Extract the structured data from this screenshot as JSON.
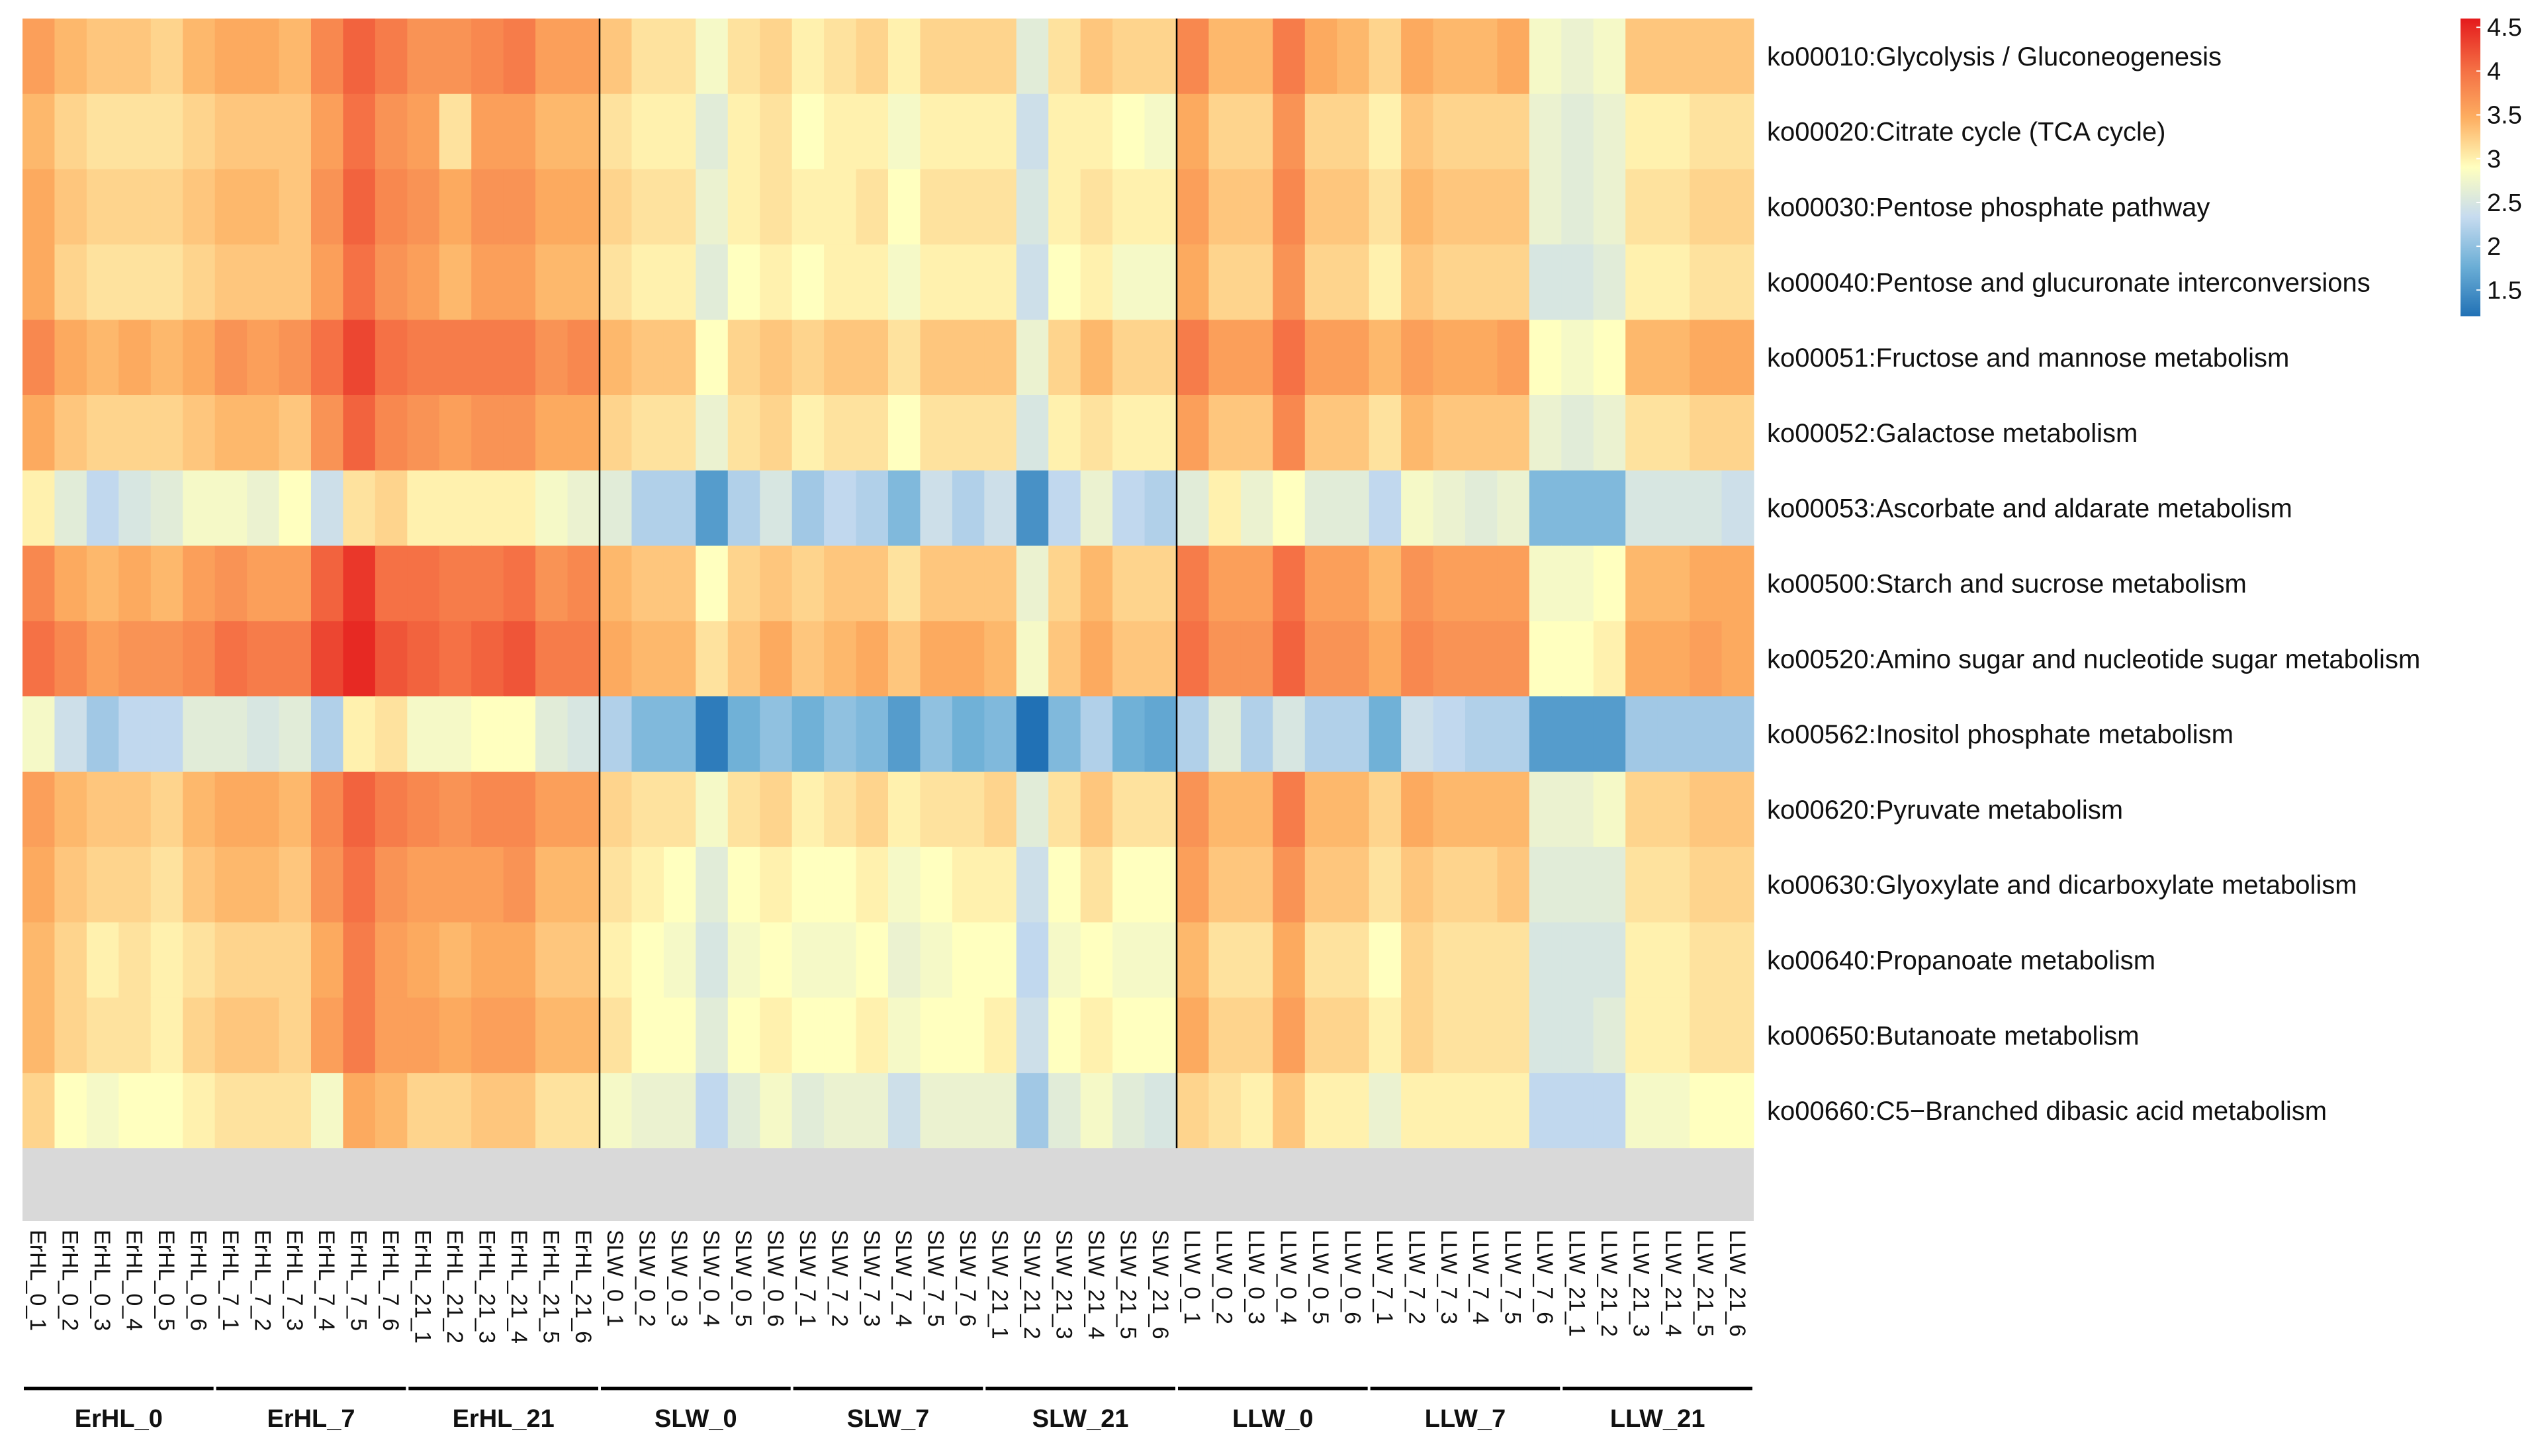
{
  "chart_data": {
    "type": "heatmap",
    "title": "",
    "rows": [
      "ko00010:Glycolysis / Gluconeogenesis",
      "ko00020:Citrate cycle (TCA cycle)",
      "ko00030:Pentose phosphate pathway",
      "ko00040:Pentose and glucuronate interconversions",
      "ko00051:Fructose and mannose metabolism",
      "ko00052:Galactose metabolism",
      "ko00053:Ascorbate and aldarate metabolism",
      "ko00500:Starch and sucrose metabolism",
      "ko00520:Amino sugar and nucleotide sugar metabolism",
      "ko00562:Inositol phosphate metabolism",
      "ko00620:Pyruvate metabolism",
      "ko00630:Glyoxylate and dicarboxylate metabolism",
      "ko00640:Propanoate metabolism",
      "ko00650:Butanoate metabolism",
      "ko00660:C5−Branched dibasic acid metabolism"
    ],
    "columns": [
      "ErHL_0_1",
      "ErHL_0_2",
      "ErHL_0_3",
      "ErHL_0_4",
      "ErHL_0_5",
      "ErHL_0_6",
      "ErHL_7_1",
      "ErHL_7_2",
      "ErHL_7_3",
      "ErHL_7_4",
      "ErHL_7_5",
      "ErHL_7_6",
      "ErHL_21_1",
      "ErHL_21_2",
      "ErHL_21_3",
      "ErHL_21_4",
      "ErHL_21_5",
      "ErHL_21_6",
      "SLW_0_1",
      "SLW_0_2",
      "SLW_0_3",
      "SLW_0_4",
      "SLW_0_5",
      "SLW_0_6",
      "SLW_7_1",
      "SLW_7_2",
      "SLW_7_3",
      "SLW_7_4",
      "SLW_7_5",
      "SLW_7_6",
      "SLW_21_1",
      "SLW_21_2",
      "SLW_21_3",
      "SLW_21_4",
      "SLW_21_5",
      "SLW_21_6",
      "LLW_0_1",
      "LLW_0_2",
      "LLW_0_3",
      "LLW_0_4",
      "LLW_0_5",
      "LLW_0_6",
      "LLW_7_1",
      "LLW_7_2",
      "LLW_7_3",
      "LLW_7_4",
      "LLW_7_5",
      "LLW_7_6",
      "LLW_21_1",
      "LLW_21_2",
      "LLW_21_3",
      "LLW_21_4",
      "LLW_21_5",
      "LLW_21_6"
    ],
    "groups": [
      {
        "name": "ErHL_0",
        "start": 0,
        "end": 5
      },
      {
        "name": "ErHL_7",
        "start": 6,
        "end": 11
      },
      {
        "name": "ErHL_21",
        "start": 12,
        "end": 17
      },
      {
        "name": "SLW_0",
        "start": 18,
        "end": 23
      },
      {
        "name": "SLW_7",
        "start": 24,
        "end": 29
      },
      {
        "name": "SLW_21",
        "start": 30,
        "end": 35
      },
      {
        "name": "LLW_0",
        "start": 36,
        "end": 41
      },
      {
        "name": "LLW_7",
        "start": 42,
        "end": 47
      },
      {
        "name": "LLW_21",
        "start": 48,
        "end": 53
      }
    ],
    "gaps_after_columns": [
      17,
      35
    ],
    "values": [
      [
        3.6,
        3.4,
        3.3,
        3.3,
        3.2,
        3.4,
        3.5,
        3.5,
        3.4,
        3.8,
        4.1,
        3.9,
        3.7,
        3.7,
        3.8,
        3.9,
        3.6,
        3.6,
        3.3,
        3.1,
        3.1,
        2.8,
        3.1,
        3.2,
        3.0,
        3.1,
        3.2,
        3.0,
        3.2,
        3.2,
        3.2,
        2.6,
        3.1,
        3.3,
        3.2,
        3.2,
        3.8,
        3.4,
        3.4,
        3.9,
        3.5,
        3.4,
        3.2,
        3.5,
        3.4,
        3.4,
        3.5,
        2.8,
        2.7,
        2.8,
        3.3,
        3.3,
        3.3,
        3.3
      ],
      [
        3.4,
        3.2,
        3.1,
        3.1,
        3.1,
        3.2,
        3.3,
        3.3,
        3.3,
        3.6,
        4.0,
        3.7,
        3.6,
        3.1,
        3.6,
        3.6,
        3.4,
        3.4,
        3.1,
        3.0,
        3.0,
        2.6,
        3.0,
        3.1,
        2.9,
        3.0,
        3.0,
        2.8,
        3.0,
        3.0,
        3.0,
        2.4,
        3.0,
        3.0,
        2.9,
        2.8,
        3.5,
        3.2,
        3.2,
        3.7,
        3.2,
        3.2,
        3.0,
        3.3,
        3.2,
        3.2,
        3.2,
        2.7,
        2.6,
        2.7,
        3.0,
        3.0,
        3.1,
        3.1
      ],
      [
        3.5,
        3.3,
        3.2,
        3.2,
        3.2,
        3.3,
        3.4,
        3.4,
        3.3,
        3.7,
        4.1,
        3.8,
        3.7,
        3.5,
        3.7,
        3.7,
        3.5,
        3.5,
        3.2,
        3.1,
        3.1,
        2.7,
        3.0,
        3.1,
        3.0,
        3.0,
        3.1,
        2.9,
        3.1,
        3.1,
        3.1,
        2.5,
        3.0,
        3.1,
        3.0,
        3.0,
        3.6,
        3.3,
        3.3,
        3.8,
        3.3,
        3.3,
        3.1,
        3.4,
        3.3,
        3.3,
        3.3,
        2.7,
        2.6,
        2.7,
        3.1,
        3.1,
        3.2,
        3.2
      ],
      [
        3.5,
        3.2,
        3.1,
        3.1,
        3.1,
        3.2,
        3.3,
        3.3,
        3.3,
        3.6,
        4.0,
        3.7,
        3.6,
        3.4,
        3.6,
        3.6,
        3.4,
        3.4,
        3.1,
        3.0,
        3.0,
        2.6,
        2.9,
        3.0,
        2.9,
        3.0,
        3.0,
        2.8,
        3.0,
        3.0,
        3.0,
        2.4,
        2.9,
        3.0,
        2.8,
        2.8,
        3.5,
        3.2,
        3.2,
        3.7,
        3.2,
        3.2,
        3.0,
        3.3,
        3.2,
        3.2,
        3.2,
        2.5,
        2.5,
        2.6,
        3.0,
        3.0,
        3.1,
        3.1
      ],
      [
        3.8,
        3.5,
        3.4,
        3.5,
        3.4,
        3.5,
        3.7,
        3.6,
        3.7,
        4.0,
        4.3,
        4.0,
        3.9,
        3.9,
        3.9,
        3.9,
        3.7,
        3.8,
        3.4,
        3.3,
        3.3,
        2.9,
        3.2,
        3.3,
        3.2,
        3.3,
        3.3,
        3.1,
        3.3,
        3.3,
        3.3,
        2.7,
        3.2,
        3.4,
        3.2,
        3.2,
        3.9,
        3.6,
        3.6,
        4.0,
        3.6,
        3.6,
        3.4,
        3.6,
        3.5,
        3.5,
        3.6,
        2.9,
        2.8,
        2.9,
        3.4,
        3.4,
        3.5,
        3.5
      ],
      [
        3.5,
        3.3,
        3.2,
        3.2,
        3.2,
        3.3,
        3.4,
        3.4,
        3.3,
        3.7,
        4.1,
        3.8,
        3.7,
        3.6,
        3.7,
        3.7,
        3.5,
        3.5,
        3.2,
        3.1,
        3.1,
        2.7,
        3.1,
        3.2,
        3.0,
        3.1,
        3.1,
        2.9,
        3.1,
        3.1,
        3.1,
        2.5,
        3.0,
        3.1,
        3.0,
        3.0,
        3.6,
        3.3,
        3.3,
        3.8,
        3.3,
        3.3,
        3.1,
        3.4,
        3.3,
        3.3,
        3.3,
        2.7,
        2.6,
        2.7,
        3.1,
        3.1,
        3.2,
        3.2
      ],
      [
        3.0,
        2.6,
        2.3,
        2.5,
        2.6,
        2.8,
        2.8,
        2.7,
        2.9,
        2.4,
        3.1,
        3.2,
        3.0,
        3.0,
        3.0,
        3.0,
        2.8,
        2.7,
        2.6,
        2.2,
        2.2,
        1.6,
        2.2,
        2.5,
        2.1,
        2.3,
        2.2,
        1.9,
        2.4,
        2.2,
        2.4,
        1.5,
        2.3,
        2.7,
        2.3,
        2.2,
        2.6,
        3.0,
        2.7,
        2.9,
        2.6,
        2.6,
        2.3,
        2.8,
        2.7,
        2.6,
        2.7,
        1.9,
        1.9,
        1.9,
        2.5,
        2.5,
        2.5,
        2.4
      ],
      [
        3.8,
        3.5,
        3.4,
        3.5,
        3.4,
        3.6,
        3.7,
        3.6,
        3.6,
        4.1,
        4.4,
        4.0,
        4.0,
        3.9,
        3.9,
        4.0,
        3.7,
        3.8,
        3.4,
        3.3,
        3.3,
        2.9,
        3.2,
        3.3,
        3.2,
        3.3,
        3.3,
        3.1,
        3.3,
        3.3,
        3.3,
        2.7,
        3.2,
        3.4,
        3.2,
        3.2,
        3.9,
        3.6,
        3.6,
        4.0,
        3.6,
        3.6,
        3.4,
        3.7,
        3.6,
        3.6,
        3.6,
        2.8,
        2.8,
        2.9,
        3.4,
        3.4,
        3.5,
        3.5
      ],
      [
        4.0,
        3.8,
        3.6,
        3.7,
        3.7,
        3.8,
        4.0,
        3.9,
        3.9,
        4.3,
        4.5,
        4.2,
        4.1,
        4.0,
        4.1,
        4.2,
        3.9,
        3.9,
        3.5,
        3.4,
        3.4,
        3.1,
        3.3,
        3.5,
        3.3,
        3.4,
        3.5,
        3.3,
        3.5,
        3.5,
        3.4,
        2.8,
        3.3,
        3.5,
        3.3,
        3.3,
        4.0,
        3.7,
        3.7,
        4.1,
        3.7,
        3.7,
        3.5,
        3.8,
        3.7,
        3.7,
        3.7,
        2.9,
        2.9,
        3.0,
        3.5,
        3.5,
        3.6,
        3.5
      ],
      [
        2.8,
        2.4,
        2.1,
        2.3,
        2.3,
        2.6,
        2.6,
        2.5,
        2.6,
        2.2,
        3.0,
        3.1,
        2.8,
        2.8,
        2.9,
        2.9,
        2.6,
        2.5,
        2.2,
        1.9,
        1.9,
        1.3,
        1.8,
        2.0,
        1.8,
        2.0,
        1.9,
        1.6,
        2.0,
        1.8,
        1.9,
        1.2,
        1.9,
        2.2,
        1.8,
        1.7,
        2.2,
        2.6,
        2.2,
        2.5,
        2.2,
        2.2,
        1.8,
        2.4,
        2.3,
        2.2,
        2.2,
        1.6,
        1.6,
        1.6,
        2.1,
        2.1,
        2.1,
        2.1
      ],
      [
        3.6,
        3.4,
        3.3,
        3.3,
        3.2,
        3.4,
        3.5,
        3.5,
        3.4,
        3.8,
        4.1,
        3.9,
        3.8,
        3.7,
        3.8,
        3.8,
        3.6,
        3.6,
        3.2,
        3.1,
        3.1,
        2.8,
        3.1,
        3.2,
        3.0,
        3.1,
        3.2,
        3.0,
        3.1,
        3.1,
        3.2,
        2.6,
        3.1,
        3.3,
        3.1,
        3.1,
        3.7,
        3.4,
        3.4,
        3.9,
        3.4,
        3.4,
        3.2,
        3.5,
        3.4,
        3.4,
        3.4,
        2.7,
        2.7,
        2.8,
        3.2,
        3.2,
        3.3,
        3.3
      ],
      [
        3.5,
        3.3,
        3.2,
        3.2,
        3.1,
        3.3,
        3.4,
        3.4,
        3.3,
        3.7,
        4.0,
        3.7,
        3.6,
        3.6,
        3.6,
        3.7,
        3.4,
        3.4,
        3.1,
        3.0,
        2.9,
        2.6,
        2.9,
        3.0,
        2.9,
        2.9,
        3.0,
        2.8,
        2.9,
        3.0,
        3.0,
        2.4,
        2.9,
        3.1,
        2.9,
        2.9,
        3.6,
        3.3,
        3.3,
        3.7,
        3.3,
        3.3,
        3.1,
        3.3,
        3.2,
        3.2,
        3.3,
        2.6,
        2.6,
        2.6,
        3.1,
        3.1,
        3.2,
        3.2
      ],
      [
        3.4,
        3.2,
        3.0,
        3.1,
        3.0,
        3.1,
        3.2,
        3.2,
        3.2,
        3.5,
        3.9,
        3.6,
        3.5,
        3.4,
        3.5,
        3.5,
        3.3,
        3.3,
        3.0,
        2.9,
        2.8,
        2.5,
        2.8,
        2.9,
        2.8,
        2.8,
        2.9,
        2.7,
        2.8,
        2.9,
        2.9,
        2.3,
        2.8,
        2.9,
        2.8,
        2.8,
        3.4,
        3.1,
        3.1,
        3.5,
        3.1,
        3.1,
        2.9,
        3.2,
        3.1,
        3.1,
        3.1,
        2.5,
        2.5,
        2.5,
        3.0,
        3.0,
        3.1,
        3.1
      ],
      [
        3.4,
        3.2,
        3.1,
        3.1,
        3.0,
        3.2,
        3.3,
        3.3,
        3.2,
        3.6,
        3.9,
        3.6,
        3.6,
        3.5,
        3.6,
        3.6,
        3.4,
        3.4,
        3.1,
        2.9,
        2.9,
        2.6,
        2.9,
        3.0,
        2.9,
        2.9,
        3.0,
        2.8,
        2.9,
        2.9,
        3.0,
        2.4,
        2.9,
        3.0,
        2.9,
        2.9,
        3.5,
        3.2,
        3.2,
        3.6,
        3.2,
        3.2,
        3.0,
        3.2,
        3.1,
        3.1,
        3.1,
        2.5,
        2.5,
        2.6,
        3.0,
        3.0,
        3.1,
        3.1
      ],
      [
        3.2,
        2.9,
        2.8,
        2.9,
        2.9,
        3.0,
        3.1,
        3.1,
        3.1,
        2.8,
        3.5,
        3.4,
        3.2,
        3.2,
        3.3,
        3.3,
        3.1,
        3.1,
        2.8,
        2.7,
        2.7,
        2.3,
        2.6,
        2.8,
        2.6,
        2.7,
        2.7,
        2.4,
        2.7,
        2.7,
        2.7,
        2.1,
        2.6,
        2.8,
        2.6,
        2.5,
        3.2,
        3.1,
        3.0,
        3.3,
        3.0,
        3.0,
        2.7,
        3.0,
        3.0,
        3.0,
        3.0,
        2.3,
        2.3,
        2.3,
        2.8,
        2.8,
        2.9,
        2.9
      ]
    ],
    "legend": {
      "position": "top-right",
      "min": 1.2,
      "max": 4.6,
      "ticks": [
        4.5,
        4,
        3.5,
        3,
        2.5,
        2,
        1.5
      ],
      "colors": [
        "#2171b5",
        "#6baed6",
        "#c6dbef",
        "#ffffbf",
        "#fdae61",
        "#f46d43",
        "#e41a1c"
      ]
    },
    "background_color": "#ffffff",
    "empty_band_color": "#d9d9d9",
    "separator_color": "#000000"
  }
}
